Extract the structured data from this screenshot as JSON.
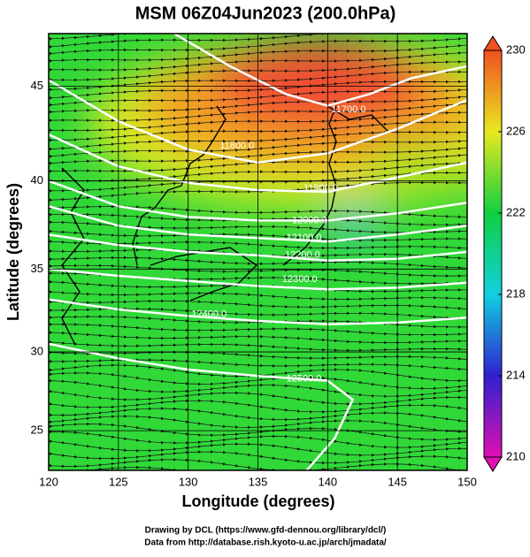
{
  "chart_data": {
    "type": "map",
    "title": "MSM 06Z04Jun2023 (200.0hPa)",
    "x_label": "Longitude (degrees)",
    "y_label": "Latitude  (degrees)",
    "xlim": [
      120,
      150
    ],
    "xticks": [
      120,
      125,
      130,
      135,
      140,
      145,
      150
    ],
    "ylim": [
      22.4,
      47.6
    ],
    "yticks": [
      25,
      30,
      35,
      40,
      45
    ],
    "colorbar": {
      "lim": [
        210,
        230
      ],
      "ticks": [
        210,
        214,
        218,
        222,
        226,
        230
      ],
      "colors": [
        "#e010b0",
        "#3020d0",
        "#10d0e0",
        "#10d040",
        "#e8e820",
        "#f05020"
      ]
    },
    "contours": [
      {
        "level": {
          "value": 11700,
          "label": "11700.0"
        },
        "label_at": [
          141.5,
          43.8
        ],
        "lon": [
          129,
          133,
          137,
          140,
          143,
          146,
          150
        ],
        "lat": [
          47.6,
          46,
          44.6,
          44,
          44.6,
          45.4,
          46
        ]
      },
      {
        "level": {
          "value": 11800,
          "label": "11800.0"
        },
        "label_at": [
          133.5,
          41.9
        ],
        "lon": [
          120,
          125,
          130,
          135,
          140,
          145,
          150
        ],
        "lat": [
          45.3,
          43.2,
          41.7,
          41,
          41.5,
          42.8,
          44.3
        ]
      },
      {
        "level": {
          "value": 11900,
          "label": "11900.0"
        },
        "label_at": [
          139.5,
          39.6
        ],
        "lon": [
          120,
          125,
          130,
          135,
          140,
          145,
          150
        ],
        "lat": [
          42.5,
          40.8,
          39.9,
          39.5,
          39.4,
          40.2,
          41
        ]
      },
      {
        "level": {
          "value": 12000,
          "label": "12000.0"
        },
        "label_at": [
          138.7,
          37.8
        ],
        "lon": [
          120,
          125,
          130,
          135,
          140,
          145,
          150
        ],
        "lat": [
          40,
          38.6,
          38,
          37.8,
          37.8,
          38.2,
          38.8
        ]
      },
      {
        "level": {
          "value": 12100,
          "label": "12100.0"
        },
        "label_at": [
          138.3,
          36.8
        ],
        "lon": [
          120,
          125,
          130,
          135,
          140,
          145,
          150
        ],
        "lat": [
          38.6,
          37.5,
          37,
          36.8,
          36.6,
          37,
          37.5
        ]
      },
      {
        "level": {
          "value": 12200,
          "label": "12200.0"
        },
        "label_at": [
          138.2,
          35.8
        ],
        "lon": [
          120,
          125,
          130,
          135,
          140,
          145,
          150
        ],
        "lat": [
          37,
          36.4,
          36,
          35.8,
          35.5,
          35.6,
          36
        ]
      },
      {
        "level": {
          "value": 12300,
          "label": "12300.0"
        },
        "label_at": [
          138,
          34.4
        ],
        "lon": [
          120,
          125,
          130,
          135,
          140,
          145,
          150
        ],
        "lat": [
          35,
          34.6,
          34.3,
          34,
          33.8,
          33.9,
          34.2
        ]
      },
      {
        "level": {
          "value": 12400,
          "label": "12400.0"
        },
        "label_at": [
          131.5,
          32.3
        ],
        "lon": [
          120,
          125,
          130,
          135,
          140,
          145,
          150
        ],
        "lat": [
          33.2,
          32.6,
          32.2,
          31.9,
          31.7,
          31.8,
          32.1
        ]
      },
      {
        "level": {
          "value": 12500,
          "label": "12500.0"
        },
        "label_at": [
          138.3,
          28.3
        ],
        "lon": [
          120,
          125,
          130,
          135,
          140,
          141.8,
          140.5,
          138.5
        ],
        "lat": [
          30.5,
          29.6,
          28.9,
          28.5,
          28.2,
          27,
          24.5,
          22.4
        ]
      }
    ],
    "footer": [
      "Drawing by DCL (https://www.gfd-dennou.org/library/dcl/)",
      "Data from http://database.rish.kyoto-u.ac.jp/arch/jmadata/"
    ]
  }
}
